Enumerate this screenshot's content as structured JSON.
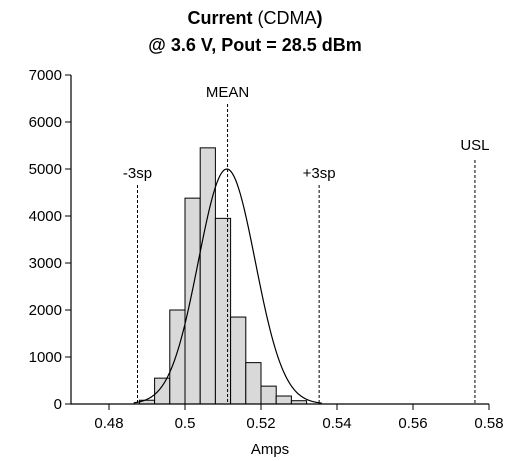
{
  "chart_data": {
    "type": "bar",
    "title_line1": {
      "bold_part": "Current",
      "normal_part": " (CDMA",
      "bold_end": ")"
    },
    "title_line2": "@ 3.6 V, Pout = 28.5 dBm",
    "xlabel": "Amps",
    "ylabel": "",
    "xlim": [
      0.47,
      0.58
    ],
    "ylim": [
      0,
      7000
    ],
    "x_ticks": [
      0.48,
      0.5,
      0.52,
      0.54,
      0.56,
      0.58
    ],
    "x_tick_labels": [
      "0.48",
      "0.5",
      "0.52",
      "0.54",
      "0.56",
      "0.58"
    ],
    "y_ticks": [
      0,
      1000,
      2000,
      3000,
      4000,
      5000,
      6000,
      7000
    ],
    "y_tick_labels": [
      "0",
      "1000",
      "2000",
      "3000",
      "4000",
      "5000",
      "6000",
      "7000"
    ],
    "bin_width": 0.004,
    "bins": [
      {
        "start": 0.488,
        "count": 80
      },
      {
        "start": 0.492,
        "count": 550
      },
      {
        "start": 0.496,
        "count": 2000
      },
      {
        "start": 0.5,
        "count": 4380
      },
      {
        "start": 0.504,
        "count": 5450
      },
      {
        "start": 0.508,
        "count": 3950
      },
      {
        "start": 0.512,
        "count": 1850
      },
      {
        "start": 0.516,
        "count": 880
      },
      {
        "start": 0.52,
        "count": 380
      },
      {
        "start": 0.524,
        "count": 170
      },
      {
        "start": 0.528,
        "count": 70
      }
    ],
    "fit_curve": {
      "mean": 0.511,
      "sd": 0.0075,
      "peak": 5000,
      "x_range": [
        0.4865,
        0.536
      ]
    },
    "reference_lines": [
      {
        "label": "-3sp",
        "x": 0.4875
      },
      {
        "label": "MEAN",
        "x": 0.5112
      },
      {
        "label": "+3sp",
        "x": 0.5353
      },
      {
        "label": "USL",
        "x": 0.5763
      }
    ],
    "grid": false,
    "legend": "none"
  }
}
